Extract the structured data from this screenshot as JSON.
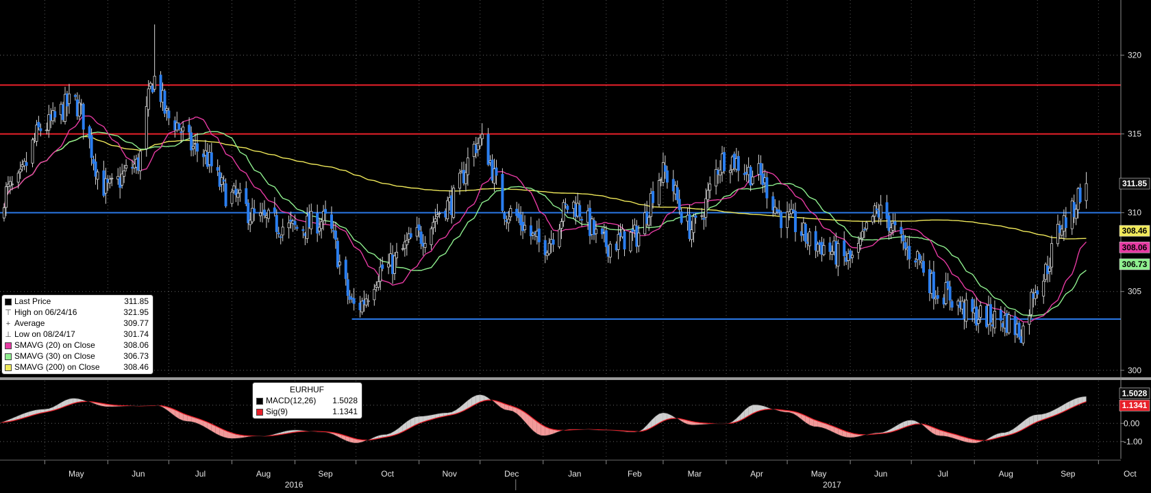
{
  "chart_data": [
    {
      "type": "candlestick",
      "ticker": "EURHUF",
      "y_axis": {
        "ticks": [
          "300",
          "305",
          "310",
          "315",
          "320"
        ],
        "range": [
          299.6,
          323.5
        ]
      },
      "x_axis": {
        "month_labels": [
          "May",
          "Jun",
          "Jul",
          "Aug",
          "Sep",
          "Oct",
          "Nov",
          "Dec",
          "Jan",
          "Feb",
          "Mar",
          "Apr",
          "May",
          "Jun",
          "Jul",
          "Aug",
          "Sep",
          "Oct"
        ],
        "year_labels": [
          "2016",
          "2017"
        ]
      },
      "horizontal_lines": [
        {
          "value": 318.1,
          "color": "#e8202a"
        },
        {
          "value": 315.0,
          "color": "#e8202a"
        },
        {
          "value": 310.0,
          "color": "#2a78e8"
        },
        {
          "value": 303.25,
          "color": "#2a78e8",
          "from": "2016-10"
        }
      ],
      "price_anchors": {
        "dates": [
          "2016-04-01",
          "2016-04-15",
          "2016-05-01",
          "2016-05-15",
          "2016-06-01",
          "2016-06-15",
          "2016-06-24",
          "2016-07-01",
          "2016-07-15",
          "2016-08-01",
          "2016-08-15",
          "2016-09-01",
          "2016-09-15",
          "2016-10-01",
          "2016-10-15",
          "2016-11-01",
          "2016-11-15",
          "2016-12-01",
          "2016-12-15",
          "2017-01-01",
          "2017-01-15",
          "2017-02-01",
          "2017-02-15",
          "2017-03-01",
          "2017-03-15",
          "2017-04-01",
          "2017-04-15",
          "2017-05-01",
          "2017-05-15",
          "2017-06-01",
          "2017-06-15",
          "2017-07-01",
          "2017-07-15",
          "2017-08-01",
          "2017-08-15",
          "2017-08-24",
          "2017-09-01",
          "2017-09-15",
          "2017-09-25"
        ],
        "close": [
          309.5,
          311.5,
          315.5,
          317.0,
          311.5,
          313.0,
          318.5,
          316.0,
          314.0,
          311.0,
          309.5,
          309.0,
          309.5,
          304.0,
          306.5,
          308.5,
          310.5,
          314.5,
          310.0,
          308.0,
          310.5,
          308.0,
          308.5,
          312.5,
          309.0,
          313.5,
          312.5,
          309.5,
          308.0,
          307.0,
          310.0,
          307.5,
          305.0,
          303.5,
          303.2,
          302.5,
          305.5,
          309.5,
          311.85
        ]
      },
      "legend": [
        {
          "label": "Last Price",
          "value": "311.85",
          "color": "#000000",
          "kind": "swatch"
        },
        {
          "label": "High on 06/24/16",
          "value": "321.95",
          "kind": "high"
        },
        {
          "label": "Average",
          "value": "309.77",
          "kind": "avg"
        },
        {
          "label": "Low on 08/24/17",
          "value": "301.74",
          "kind": "low"
        },
        {
          "label": "SMAVG (20) on Close",
          "value": "308.06",
          "color": "#e63aa2",
          "kind": "swatch"
        },
        {
          "label": "SMAVG (30) on Close",
          "value": "306.73",
          "color": "#8ff08f",
          "kind": "swatch"
        },
        {
          "label": "SMAVG (200) on Close",
          "value": "308.46",
          "color": "#f0e95a",
          "kind": "swatch"
        }
      ],
      "right_tags": [
        {
          "text": "311.85",
          "value": 311.85,
          "bg": "#111111",
          "fg": "#ffffff"
        },
        {
          "text": "308.46",
          "value": 308.46,
          "bg": "#f0e95a",
          "fg": "#000000"
        },
        {
          "text": "308.06",
          "value": 308.06,
          "bg": "#e63aa2",
          "fg": "#000000"
        },
        {
          "text": "306.73",
          "value": 306.73,
          "bg": "#8ff08f",
          "fg": "#000000"
        }
      ]
    },
    {
      "type": "line",
      "title": "EURHUF",
      "y_axis": {
        "ticks": [
          "-1.00",
          "0.00",
          "1.00"
        ],
        "range": [
          -1.95,
          2.35
        ]
      },
      "series": [
        {
          "name": "MACD(12,26)",
          "value": "1.5028",
          "color": "#000000"
        },
        {
          "name": "Sig(9)",
          "value": "1.1341",
          "color": "#e8202a"
        }
      ],
      "macd_anchors": {
        "dates": [
          "2016-04-01",
          "2016-05-01",
          "2016-05-15",
          "2016-06-01",
          "2016-06-24",
          "2016-07-10",
          "2016-08-01",
          "2016-08-15",
          "2016-09-01",
          "2016-09-15",
          "2016-10-01",
          "2016-10-15",
          "2016-11-01",
          "2016-11-15",
          "2016-12-01",
          "2016-12-15",
          "2017-01-01",
          "2017-01-15",
          "2017-02-01",
          "2017-02-15",
          "2017-03-01",
          "2017-03-15",
          "2017-04-01",
          "2017-04-15",
          "2017-05-01",
          "2017-05-15",
          "2017-06-01",
          "2017-06-15",
          "2017-07-01",
          "2017-07-15",
          "2017-08-01",
          "2017-08-15",
          "2017-09-01",
          "2017-09-25"
        ],
        "values": [
          -0.1,
          0.8,
          1.4,
          0.9,
          1.0,
          0.1,
          -0.85,
          -0.7,
          -0.35,
          -0.5,
          -1.1,
          -0.6,
          0.4,
          0.6,
          1.6,
          0.7,
          -0.7,
          -0.3,
          -0.4,
          -0.5,
          0.6,
          -0.1,
          0.0,
          1.05,
          0.6,
          -0.2,
          -0.8,
          -0.5,
          0.2,
          -0.7,
          -1.1,
          -0.5,
          0.5,
          1.5
        ]
      },
      "right_tags": [
        {
          "text": "1.5028",
          "value": 1.5028,
          "bg": "#111111",
          "fg": "#ffffff"
        },
        {
          "text": "1.1341",
          "value": 1.1341,
          "bg": "#e8202a",
          "fg": "#ffffff"
        }
      ]
    }
  ]
}
